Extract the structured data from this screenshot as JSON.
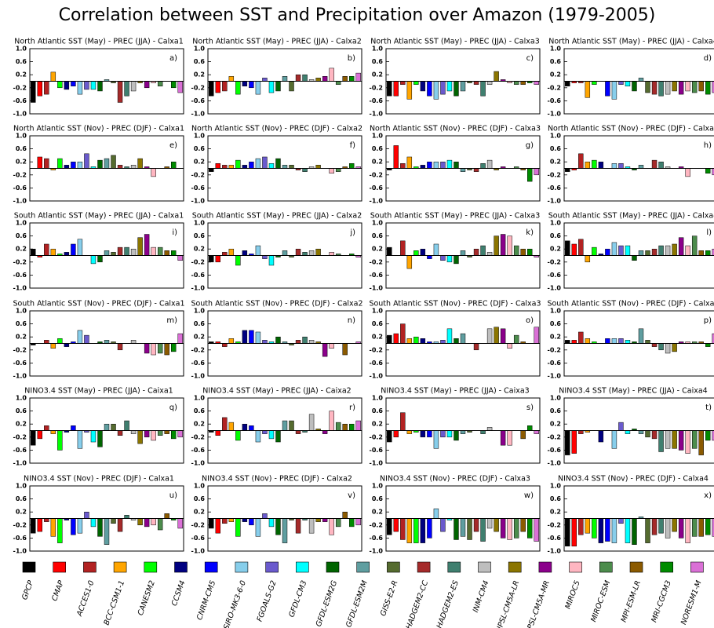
{
  "chart_data": {
    "type": "bar",
    "title": "Correlation between SST and Precipitation over Amazon (1979-2005)",
    "ylim": [
      -1,
      1
    ],
    "yticks": [
      {
        "value": 1,
        "label": "1.0"
      },
      {
        "value": 0.6,
        "label": "0.6"
      },
      {
        "value": 0.2,
        "label": "0.2"
      },
      {
        "value": -0.2,
        "label": "-0.2"
      },
      {
        "value": -0.6,
        "label": "-0.6"
      },
      {
        "value": -1,
        "label": "-1.0"
      }
    ],
    "series": [
      {
        "name": "GPCP",
        "color": "#000000"
      },
      {
        "name": "CMAP",
        "color": "#ff0000"
      },
      {
        "name": "ACCES1-0",
        "color": "#b22222"
      },
      {
        "name": "BCC-CSM1-1",
        "color": "#ffa500"
      },
      {
        "name": "CANESM2",
        "color": "#00ff00"
      },
      {
        "name": "CCSM4",
        "color": "#000080"
      },
      {
        "name": "CNRM-CM5",
        "color": "#0000ff"
      },
      {
        "name": "CSIRO-MK3-6-0",
        "color": "#87ceeb"
      },
      {
        "name": "FGOALS-G2",
        "color": "#6a5acd"
      },
      {
        "name": "GFDL-CM3",
        "color": "#00ffff"
      },
      {
        "name": "GFDL-ESM2G",
        "color": "#006400"
      },
      {
        "name": "GFDL-ESM2M",
        "color": "#5f9ea0"
      },
      {
        "name": "GISS-E2-R",
        "color": "#556b2f"
      },
      {
        "name": "HADGEM2-CC",
        "color": "#a52a2a"
      },
      {
        "name": "HADGEM2-ES",
        "color": "#3f7f6f"
      },
      {
        "name": "INM-CM4",
        "color": "#bebebe"
      },
      {
        "name": "IPSL-CM5A-LR",
        "color": "#8b7500"
      },
      {
        "name": "IPSL-CM5A-MR",
        "color": "#8b008b"
      },
      {
        "name": "MIROC5",
        "color": "#ffb6c1"
      },
      {
        "name": "MIROC-ESM",
        "color": "#4c8c4c"
      },
      {
        "name": "MPI-ESM-LR",
        "color": "#8b5a00"
      },
      {
        "name": "MRI-CGCM3",
        "color": "#008b00"
      },
      {
        "name": "NORESM1-M",
        "color": "#da70d6"
      }
    ],
    "panels": [
      {
        "title": "North Atlantic SST (May) - PREC (JJA) - Calxa1",
        "label": "a)",
        "values": [
          -0.65,
          -0.45,
          -0.4,
          0.28,
          -0.2,
          -0.25,
          -0.15,
          -0.4,
          -0.25,
          -0.25,
          -0.3,
          0.05,
          -0.05,
          -0.65,
          -0.45,
          -0.3,
          -0.05,
          -0.2,
          -0.05,
          -0.15,
          0,
          -0.2,
          -0.35
        ]
      },
      {
        "title": "North Atlantic SST (May) - PREC (JJA) - Calxa2",
        "label": "b)",
        "values": [
          -0.45,
          -0.35,
          -0.3,
          0.15,
          -0.4,
          -0.15,
          -0.2,
          -0.4,
          0.1,
          -0.35,
          -0.3,
          0.15,
          -0.3,
          0.2,
          0.2,
          0.05,
          0.1,
          0.15,
          0.4,
          -0.1,
          0.15,
          0.15,
          0.25
        ]
      },
      {
        "title": "North Atlantic SST (May) - PREC (JJA) - Calxa3",
        "label": "c)",
        "values": [
          -0.45,
          -0.45,
          -0.1,
          -0.55,
          -0.1,
          -0.3,
          -0.45,
          -0.55,
          -0.4,
          -0.3,
          -0.45,
          -0.3,
          -0.05,
          -0.1,
          -0.45,
          -0.1,
          0.3,
          0.05,
          -0.05,
          -0.1,
          -0.1,
          -0.05,
          -0.1
        ]
      },
      {
        "title": "North Atlantic SST (May) - PREC (JJA) - Calxa4",
        "label": "d)",
        "values": [
          -0.15,
          -0.05,
          -0.05,
          -0.5,
          -0.1,
          0,
          -0.45,
          -0.55,
          -0.1,
          -0.15,
          -0.3,
          0.1,
          -0.35,
          -0.4,
          -0.45,
          -0.4,
          -0.3,
          -0.4,
          -0.3,
          -0.35,
          -0.3,
          -0.4,
          -0.35
        ]
      },
      {
        "title": "North Atlantic SST (Nov) - PREC (DJF) - Calxa1",
        "label": "e)",
        "values": [
          0,
          0.35,
          0.3,
          -0.05,
          0.3,
          0.1,
          0.2,
          0.2,
          0.45,
          0.05,
          0.25,
          0.3,
          0.4,
          0.1,
          0.05,
          0.1,
          0.3,
          0.05,
          -0.25,
          0,
          0.05,
          0.2,
          0
        ]
      },
      {
        "title": "North Atlantic SST (Nov) - PREC (DJF) - Calxa2",
        "label": "f)",
        "values": [
          -0.1,
          0.15,
          0.1,
          0.1,
          0.25,
          0.1,
          0.2,
          0.3,
          0.35,
          0.15,
          0.3,
          0.1,
          0.1,
          -0.05,
          -0.1,
          0.05,
          0.1,
          0,
          -0.15,
          -0.1,
          0.05,
          0.15,
          0.05
        ]
      },
      {
        "title": "North Atlantic SST (Nov) - PREC (DJF) - Calxa3",
        "label": "g)",
        "values": [
          -0.05,
          0.7,
          0.15,
          0.35,
          0.05,
          0.1,
          0.2,
          0.2,
          0.2,
          0.25,
          0.2,
          -0.1,
          -0.05,
          -0.1,
          0.15,
          0.25,
          -0.05,
          0.05,
          0,
          0.05,
          -0.05,
          -0.4,
          -0.2
        ]
      },
      {
        "title": "North Atlantic SST (Nov) - PREC (DJF) - Calxa4",
        "label": "h)",
        "values": [
          -0.1,
          -0.05,
          0.45,
          0.2,
          0.25,
          0.2,
          0,
          0.15,
          0.15,
          0.05,
          -0.05,
          0.1,
          0,
          0.25,
          0.2,
          0.05,
          0,
          0.05,
          -0.25,
          0,
          0,
          -0.15,
          -0.2
        ]
      },
      {
        "title": "South Atlantic SST (May) - PREC (JJA) - Calxa1",
        "label": "i)",
        "values": [
          0.2,
          -0.05,
          0.35,
          0.2,
          0.05,
          0.1,
          0.35,
          0.5,
          0,
          -0.25,
          -0.2,
          0.15,
          0.1,
          0.25,
          0.25,
          0.2,
          0.55,
          0.65,
          0.25,
          0.25,
          0.15,
          0.15,
          -0.15
        ]
      },
      {
        "title": "South Atlantic SST (May) - PREC (JJA) - Calxa2",
        "label": "j)",
        "values": [
          -0.2,
          -0.2,
          0.1,
          0.2,
          -0.3,
          0.15,
          0.05,
          0.3,
          -0.1,
          -0.3,
          -0.05,
          0.15,
          -0.05,
          0.2,
          0.1,
          0.15,
          0.2,
          0,
          0.1,
          0.05,
          0,
          0.05,
          -0.05
        ]
      },
      {
        "title": "South Atlantic SST (May) - PREC (JJA) - Calxa3",
        "label": "k)",
        "values": [
          0.25,
          0,
          0.45,
          -0.4,
          0.15,
          0.2,
          -0.1,
          0.35,
          -0.15,
          -0.2,
          -0.25,
          0.15,
          -0.05,
          0.2,
          0.3,
          0.1,
          0.6,
          0.65,
          0.6,
          0.3,
          0.2,
          0.2,
          -0.05
        ]
      },
      {
        "title": "South Atlantic SST (May) - PREC (JJA) - Calxa4",
        "label": "l)",
        "values": [
          0.45,
          0.35,
          0.5,
          -0.2,
          0.25,
          0.05,
          0.2,
          0.4,
          0.3,
          0.3,
          -0.15,
          0.15,
          0.15,
          0.2,
          0.3,
          0.3,
          0.35,
          0.55,
          0.3,
          0.6,
          0.15,
          0.15,
          0.2
        ]
      },
      {
        "title": "South Atlantic SST (Nov) - PREC (DJF) - Calxa1",
        "label": "m)",
        "values": [
          -0.05,
          0,
          0.1,
          -0.15,
          0.15,
          -0.1,
          0.05,
          0.4,
          0.25,
          0,
          0.05,
          0.1,
          0.05,
          -0.2,
          0,
          0.1,
          0,
          -0.3,
          -0.35,
          -0.3,
          -0.35,
          -0.25,
          0.3
        ]
      },
      {
        "title": "South Atlantic SST (Nov) - PREC (DJF) - Calxa2",
        "label": "n)",
        "values": [
          0.05,
          0.05,
          -0.1,
          0.15,
          0.05,
          0.4,
          0.4,
          0.35,
          0.1,
          0.05,
          0.2,
          0.05,
          -0.05,
          0.1,
          0.2,
          0.1,
          0.05,
          -0.4,
          -0.15,
          0,
          -0.35,
          0,
          0.05
        ]
      },
      {
        "title": "South Atlantic SST (Nov) - PREC (DJF) - Calxa3",
        "label": "o)",
        "values": [
          0.25,
          0.3,
          0.6,
          0.15,
          0.2,
          0.15,
          0.05,
          0.05,
          0.1,
          0.45,
          0.15,
          0.3,
          0,
          -0.2,
          0,
          0.45,
          0.5,
          0.45,
          -0.15,
          0.25,
          0.05,
          0,
          0.5
        ]
      },
      {
        "title": "South Atlantic SST (Nov) - PREC (DJF) - Calxa4",
        "label": "p)",
        "values": [
          0.1,
          0.1,
          0.35,
          0.15,
          0.05,
          0,
          0.15,
          0.15,
          0.15,
          0.1,
          0.05,
          0.45,
          0.1,
          -0.1,
          -0.2,
          -0.3,
          -0.25,
          0.05,
          0.05,
          0.05,
          0.05,
          -0.1,
          0.3
        ]
      },
      {
        "title": "NINO3.4 SST (May) - PREC (JJA) - Caixa1",
        "label": "q)",
        "values": [
          -0.45,
          -0.25,
          0.15,
          -0.1,
          -0.6,
          -0.05,
          0.15,
          -0.55,
          -0.05,
          -0.35,
          -0.5,
          0.2,
          0.2,
          -0.15,
          0.3,
          -0.1,
          -0.4,
          -0.2,
          -0.3,
          -0.15,
          -0.1,
          -0.25,
          -0.2
        ]
      },
      {
        "title": "NINO3.4 SST (May) - PREC (JJA) - Caixa2",
        "label": "r)",
        "values": [
          -0.05,
          -0.15,
          0.4,
          0.25,
          -0.3,
          0.2,
          0.15,
          -0.35,
          -0.1,
          -0.25,
          -0.35,
          0.3,
          0.3,
          -0.1,
          -0.05,
          0.5,
          0.05,
          -0.1,
          0.6,
          0.25,
          0.2,
          0.2,
          0.3
        ]
      },
      {
        "title": "NINO3.4 SST (May) - PREC (JJA) - Caixa3",
        "label": "s)",
        "values": [
          -0.35,
          -0.2,
          0.55,
          -0.1,
          -0.05,
          -0.2,
          -0.2,
          -0.55,
          -0.2,
          -0.2,
          -0.3,
          -0.1,
          -0.05,
          0,
          -0.1,
          0.1,
          0,
          -0.45,
          -0.45,
          0,
          -0.25,
          0.15,
          -0.1
        ]
      },
      {
        "title": "NINO3.4 SST (May) - PREC (JJA) - Caixa4",
        "label": "t)",
        "values": [
          -0.75,
          -0.7,
          -0.1,
          -0.05,
          0,
          -0.35,
          0,
          -0.55,
          0.25,
          -0.1,
          0.05,
          -0.1,
          -0.2,
          -0.25,
          -0.65,
          -0.55,
          -0.55,
          -0.6,
          -0.7,
          -0.55,
          -0.75,
          -0.3,
          -0.3
        ]
      },
      {
        "title": "NINO3.4 SST (Nov) - PREC (DJF) - Calxa1",
        "label": "u)",
        "values": [
          -0.45,
          -0.4,
          -0.1,
          -0.55,
          -0.75,
          -0.05,
          -0.5,
          -0.45,
          0.2,
          -0.25,
          -0.55,
          -0.8,
          -0.15,
          -0.4,
          0.1,
          -0.05,
          -0.2,
          -0.25,
          -0.2,
          -0.35,
          0.15,
          -0.05,
          -0.3
        ]
      },
      {
        "title": "NINO3.4 SST (Nov) - PREC (DJF) - Calxa2",
        "label": "v)",
        "values": [
          -0.3,
          -0.45,
          -0.15,
          -0.1,
          -0.55,
          -0.1,
          -0.2,
          -0.55,
          0.15,
          -0.25,
          -0.5,
          -0.75,
          -0.05,
          -0.45,
          -0.05,
          -0.45,
          -0.1,
          -0.1,
          -0.5,
          -0.25,
          0.2,
          -0.25,
          -0.2
        ]
      },
      {
        "title": "NINO3.4 SST (Nov) - PREC (DJF) - Calxa3",
        "label": "w)",
        "values": [
          -0.5,
          -0.4,
          -0.65,
          -0.75,
          -0.75,
          -0.75,
          -0.6,
          0.3,
          -0.4,
          -0.05,
          -0.65,
          -0.55,
          -0.65,
          -0.4,
          -0.7,
          -0.3,
          -0.4,
          -0.6,
          -0.65,
          -0.6,
          -0.4,
          -0.6,
          -0.7
        ]
      },
      {
        "title": "NINO3.4 SST (Nov) - PREC (DJF) - Calxa4",
        "label": "x)",
        "values": [
          -0.85,
          -0.85,
          -0.5,
          -0.45,
          -0.6,
          -0.75,
          -0.7,
          -0.75,
          -0.15,
          -0.75,
          -0.8,
          0.05,
          -0.75,
          -0.5,
          -0.45,
          -0.6,
          -0.4,
          -0.6,
          -0.75,
          -0.55,
          -0.55,
          -0.5,
          -0.55
        ]
      }
    ]
  }
}
